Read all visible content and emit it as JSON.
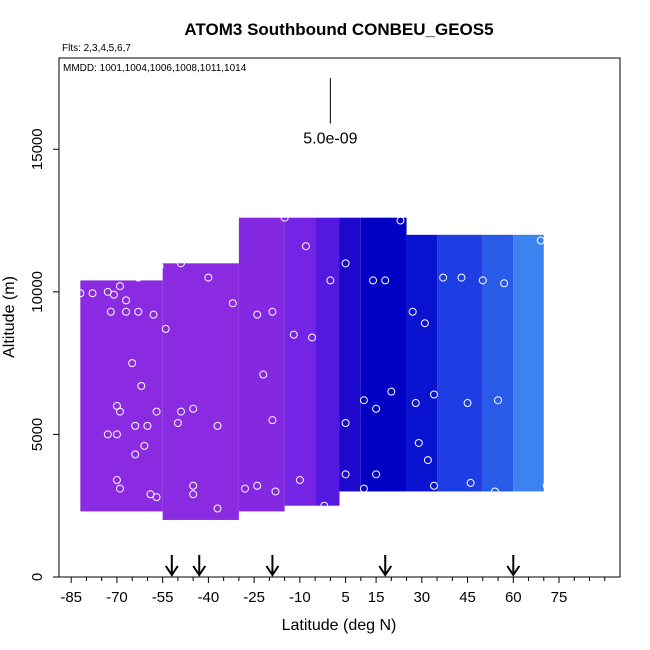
{
  "chart_data": {
    "type": "scatter",
    "title": "ATOM3 Southbound CONBEU_GEOS5",
    "flights_note": "Flts: 2,3,4,5,6,7",
    "dates_note": "MMDD: 1001,1004,1006,1008,1011,1014",
    "xlabel": "Latitude (deg N)",
    "ylabel": "Altitude (m)",
    "xlim": [
      -89,
      95
    ],
    "ylim": [
      0,
      18200
    ],
    "x_ticks": [
      -85,
      -70,
      -55,
      -40,
      -25,
      -10,
      5,
      15,
      30,
      45,
      60,
      75
    ],
    "y_ticks": [
      0,
      5000,
      10000,
      15000
    ],
    "scale_bar_label": "5.0e-09",
    "scale_bar": {
      "lat": 0,
      "alt_top": 17500,
      "alt_bottom": 15900
    },
    "arrow_latitudes": [
      -52,
      -43,
      -19,
      18,
      60
    ],
    "colors": {
      "purple": "#8a2be2",
      "blue_violet": "#6a22e6",
      "dark_blue": "#0000c8",
      "blue": "#2a4ae8",
      "light_blue": "#3a8ef2",
      "cyan": "#00bfff"
    },
    "field_bins": [
      {
        "lat0": -82,
        "lat1": -55,
        "alt0": 2300,
        "alt1": 10400,
        "color": "#8a2be2"
      },
      {
        "lat0": -55,
        "lat1": -30,
        "alt0": 2000,
        "alt1": 11000,
        "color": "#8a2be2"
      },
      {
        "lat0": -30,
        "lat1": -15,
        "alt0": 2300,
        "alt1": 12600,
        "color": "#8428e2"
      },
      {
        "lat0": -15,
        "lat1": -5,
        "alt0": 2500,
        "alt1": 12600,
        "color": "#7424e4"
      },
      {
        "lat0": -5,
        "lat1": 3,
        "alt0": 2500,
        "alt1": 12600,
        "color": "#5418e0"
      },
      {
        "lat0": 3,
        "lat1": 10,
        "alt0": 3000,
        "alt1": 12600,
        "color": "#1e08cc"
      },
      {
        "lat0": 10,
        "lat1": 25,
        "alt0": 3000,
        "alt1": 12600,
        "color": "#0000c4"
      },
      {
        "lat0": 25,
        "lat1": 35,
        "alt0": 3000,
        "alt1": 12000,
        "color": "#0a14d0"
      },
      {
        "lat0": 35,
        "lat1": 50,
        "alt0": 3000,
        "alt1": 12000,
        "color": "#1e3ee4"
      },
      {
        "lat0": 50,
        "lat1": 60,
        "alt0": 3000,
        "alt1": 12000,
        "color": "#2a5ae8"
      },
      {
        "lat0": 60,
        "lat1": 70,
        "alt0": 3000,
        "alt1": 12000,
        "color": "#3c82f0"
      }
    ],
    "points": [
      {
        "lat": -82,
        "alt": 9950
      },
      {
        "lat": -78,
        "alt": 9950
      },
      {
        "lat": -73,
        "alt": 10000
      },
      {
        "lat": -71,
        "alt": 9900
      },
      {
        "lat": -69,
        "alt": 10200
      },
      {
        "lat": -67,
        "alt": 9700
      },
      {
        "lat": -72,
        "alt": 9300
      },
      {
        "lat": -67,
        "alt": 9300
      },
      {
        "lat": -63,
        "alt": 9300
      },
      {
        "lat": -58,
        "alt": 9200
      },
      {
        "lat": -63,
        "alt": 10500
      },
      {
        "lat": -56,
        "alt": 10900
      },
      {
        "lat": -49,
        "alt": 11000
      },
      {
        "lat": -40,
        "alt": 10500
      },
      {
        "lat": -62,
        "alt": 6700
      },
      {
        "lat": -65,
        "alt": 7500
      },
      {
        "lat": -54,
        "alt": 8700
      },
      {
        "lat": -70,
        "alt": 6000
      },
      {
        "lat": -69,
        "alt": 5800
      },
      {
        "lat": -73,
        "alt": 5000
      },
      {
        "lat": -70,
        "alt": 5000
      },
      {
        "lat": -64,
        "alt": 5300
      },
      {
        "lat": -60,
        "alt": 5300
      },
      {
        "lat": -57,
        "alt": 5800
      },
      {
        "lat": -49,
        "alt": 5800
      },
      {
        "lat": -45,
        "alt": 5900
      },
      {
        "lat": -50,
        "alt": 5400
      },
      {
        "lat": -61,
        "alt": 4600
      },
      {
        "lat": -64,
        "alt": 4300
      },
      {
        "lat": -70,
        "alt": 3400
      },
      {
        "lat": -69,
        "alt": 3100
      },
      {
        "lat": -59,
        "alt": 2900
      },
      {
        "lat": -57,
        "alt": 2800
      },
      {
        "lat": -45,
        "alt": 3200
      },
      {
        "lat": -45,
        "alt": 2900
      },
      {
        "lat": -37,
        "alt": 2400
      },
      {
        "lat": -37,
        "alt": 5300
      },
      {
        "lat": -32,
        "alt": 9600
      },
      {
        "lat": -24,
        "alt": 9200
      },
      {
        "lat": -19,
        "alt": 9300
      },
      {
        "lat": -22,
        "alt": 7100
      },
      {
        "lat": -15,
        "alt": 12600
      },
      {
        "lat": -8,
        "alt": 11600
      },
      {
        "lat": -12,
        "alt": 8500
      },
      {
        "lat": -6,
        "alt": 8400
      },
      {
        "lat": 5,
        "alt": 11000
      },
      {
        "lat": -19,
        "alt": 5500
      },
      {
        "lat": -28,
        "alt": 3100
      },
      {
        "lat": -24,
        "alt": 3200
      },
      {
        "lat": -18,
        "alt": 3000
      },
      {
        "lat": -10,
        "alt": 3400
      },
      {
        "lat": -2,
        "alt": 2500
      },
      {
        "lat": 0,
        "alt": 10400
      },
      {
        "lat": 5,
        "alt": 5400
      },
      {
        "lat": 5,
        "alt": 3600
      },
      {
        "lat": 11,
        "alt": 6200
      },
      {
        "lat": 14,
        "alt": 10400
      },
      {
        "lat": 18,
        "alt": 10400
      },
      {
        "lat": 15,
        "alt": 5900
      },
      {
        "lat": 20,
        "alt": 6500
      },
      {
        "lat": 15,
        "alt": 3600
      },
      {
        "lat": 11,
        "alt": 3100
      },
      {
        "lat": 23,
        "alt": 12500
      },
      {
        "lat": 27,
        "alt": 9300
      },
      {
        "lat": 31,
        "alt": 8900
      },
      {
        "lat": 28,
        "alt": 6100
      },
      {
        "lat": 34,
        "alt": 6400
      },
      {
        "lat": 29,
        "alt": 4700
      },
      {
        "lat": 32,
        "alt": 4100
      },
      {
        "lat": 34,
        "alt": 3200
      },
      {
        "lat": 37,
        "alt": 10500
      },
      {
        "lat": 43,
        "alt": 10500
      },
      {
        "lat": 50,
        "alt": 10400
      },
      {
        "lat": 57,
        "alt": 10300
      },
      {
        "lat": 45,
        "alt": 6100
      },
      {
        "lat": 55,
        "alt": 6200
      },
      {
        "lat": 46,
        "alt": 3300
      },
      {
        "lat": 54,
        "alt": 3000
      },
      {
        "lat": 69,
        "alt": 11800
      },
      {
        "lat": 71,
        "alt": 3200
      }
    ]
  }
}
